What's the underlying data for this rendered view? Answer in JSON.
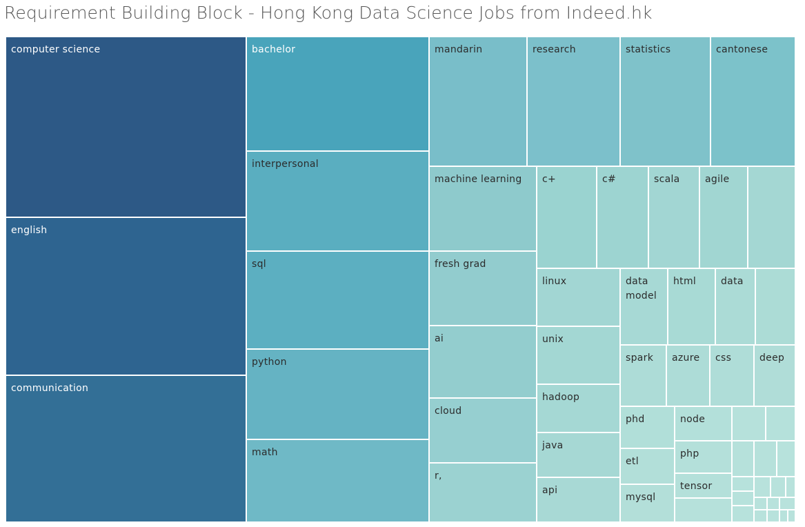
{
  "title": "Requirement Building Block - Hong Kong Data Science Jobs from Indeed.hk",
  "chart_data": {
    "type": "treemap",
    "title": "Requirement Building Block - Hong Kong Data Science Jobs from Indeed.hk",
    "color_scale": {
      "high": "#2c5985",
      "mid": "#49a5bb",
      "low": "#b6e2d8"
    },
    "items": [
      {
        "name": "computer science",
        "value": 91000,
        "color": "#2d5986"
      },
      {
        "name": "english",
        "value": 79000,
        "color": "#2e6490"
      },
      {
        "name": "communication",
        "value": 74000,
        "color": "#336f96"
      },
      {
        "name": "bachelor",
        "value": 34600,
        "color": "#49a4bb"
      },
      {
        "name": "interpersonal",
        "value": 38100,
        "color": "#5aaec0"
      },
      {
        "name": "sql",
        "value": 37100,
        "color": "#5cafc1"
      },
      {
        "name": "python",
        "value": 34400,
        "color": "#65b3c3"
      },
      {
        "name": "math",
        "value": 31300,
        "color": "#6fb9c6"
      },
      {
        "name": "mandarin",
        "value": 26800,
        "color": "#79bec9"
      },
      {
        "name": "research",
        "value": 25200,
        "color": "#7cc0cb"
      },
      {
        "name": "statistics",
        "value": 24500,
        "color": "#7fc2ca"
      },
      {
        "name": "cantonese",
        "value": 22800,
        "color": "#7cc2ca"
      },
      {
        "name": "machine learning",
        "value": 18900,
        "color": "#8ecacc"
      },
      {
        "name": "fresh grad",
        "value": 16500,
        "color": "#92ccce"
      },
      {
        "name": "ai",
        "value": 15900,
        "color": "#93cdce"
      },
      {
        "name": "cloud",
        "value": 14200,
        "color": "#96cfd0"
      },
      {
        "name": "r,",
        "value": 12900,
        "color": "#9bd2d1"
      },
      {
        "name": "c+",
        "value": 12600,
        "color": "#9ad3d0"
      },
      {
        "name": "c#",
        "value": 10900,
        "color": "#9dd4d1"
      },
      {
        "name": "scala",
        "value": 10500,
        "color": "#a2d6d3"
      },
      {
        "name": "agile",
        "value": 10200,
        "color": "#a1d6d2"
      },
      {
        "name": "",
        "value": 9900,
        "color": "#a4d7d3"
      },
      {
        "name": "linux",
        "value": 10000,
        "color": "#a2d6d3"
      },
      {
        "name": "unix",
        "value": 10000,
        "color": "#a3d7d3"
      },
      {
        "name": "hadoop",
        "value": 8200,
        "color": "#a5d8d4"
      },
      {
        "name": "java",
        "value": 7800,
        "color": "#a6d8d4"
      },
      {
        "name": "api",
        "value": 7800,
        "color": "#a8d9d5"
      },
      {
        "name": "data model",
        "value": 7500,
        "color": "#a7d9d5"
      },
      {
        "name": "html",
        "value": 7400,
        "color": "#a8dad5"
      },
      {
        "name": "data",
        "value": 6400,
        "color": "#abdbd6"
      },
      {
        "name": "",
        "value": 6100,
        "color": "#acdcd6"
      },
      {
        "name": "spark",
        "value": 5900,
        "color": "#addcd7"
      },
      {
        "name": "azure",
        "value": 5800,
        "color": "#addcd7"
      },
      {
        "name": "css",
        "value": 5500,
        "color": "#afddd8"
      },
      {
        "name": "deep",
        "value": 5400,
        "color": "#b0ddd8"
      },
      {
        "name": "phd",
        "value": 4600,
        "color": "#b1dfd9"
      },
      {
        "name": "etl",
        "value": 4000,
        "color": "#b2dfd9"
      },
      {
        "name": "mysql",
        "value": 4100,
        "color": "#b3dfd9"
      },
      {
        "name": "node",
        "value": 4000,
        "color": "#b3e0da"
      },
      {
        "name": "php",
        "value": 3800,
        "color": "#b4e0da"
      },
      {
        "name": "tensor",
        "value": 2900,
        "color": "#b4e0da"
      },
      {
        "name": "",
        "value": 2700,
        "color": "#b6e1db"
      },
      {
        "name": "",
        "value": 2500,
        "color": "#b6e1db"
      },
      {
        "name": "",
        "value": 2000,
        "color": "#b5e1db"
      },
      {
        "name": "",
        "value": 1700,
        "color": "#b6e1db"
      },
      {
        "name": "",
        "value": 1800,
        "color": "#b6e1db"
      },
      {
        "name": "",
        "value": 1400,
        "color": "#b7e2dc"
      },
      {
        "name": "",
        "value": 1400,
        "color": "#b7e2dc"
      },
      {
        "name": "",
        "value": 1500,
        "color": "#b7e2dc"
      },
      {
        "name": "",
        "value": 900,
        "color": "#b7e2dc"
      },
      {
        "name": "",
        "value": 800,
        "color": "#b8e2dc"
      },
      {
        "name": "",
        "value": 700,
        "color": "#b8e2dc"
      },
      {
        "name": "",
        "value": 700,
        "color": "#b8e2dc"
      },
      {
        "name": "",
        "value": 600,
        "color": "#b8e2dc"
      },
      {
        "name": "",
        "value": 600,
        "color": "#b8e2dc"
      },
      {
        "name": "",
        "value": 500,
        "color": "#b8e2dc"
      },
      {
        "name": "",
        "value": 400,
        "color": "#b8e2dc"
      },
      {
        "name": "",
        "value": 400,
        "color": "#b8e2dc"
      },
      {
        "name": "",
        "value": 300,
        "color": "#b8e2dc"
      },
      {
        "name": "",
        "value": 300,
        "color": "#b8e2dc"
      }
    ]
  }
}
